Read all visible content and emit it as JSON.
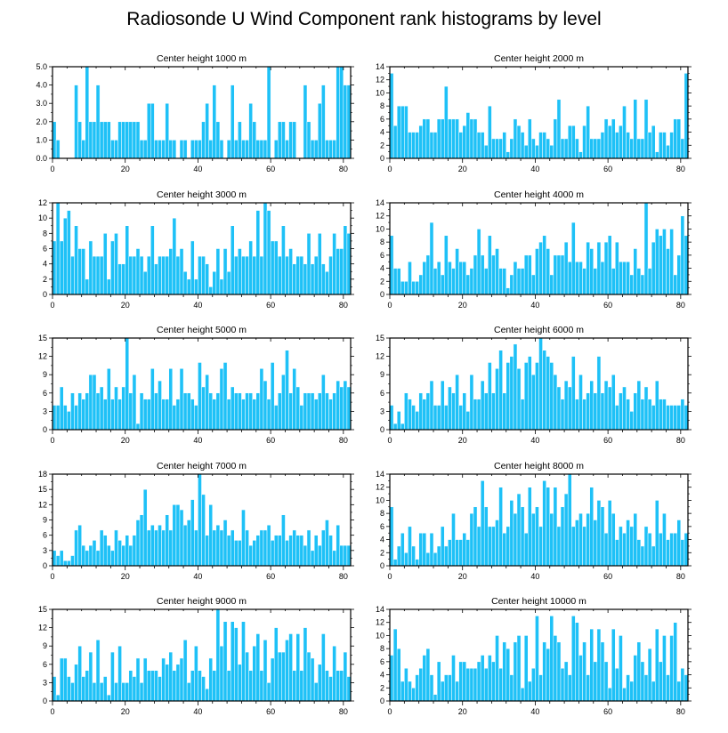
{
  "title": "Radiosonde U Wind Component rank histograms by level",
  "colors": {
    "bar": "#1ec1f7",
    "bar_edge": "#ffffff",
    "axis": "#000000",
    "frame": "#333333"
  },
  "chart_data": [
    {
      "type": "bar",
      "title": "Center height 1000 m",
      "xlim": [
        0,
        82
      ],
      "ylim": [
        0,
        5
      ],
      "xticks": [
        0,
        20,
        40,
        60,
        80
      ],
      "yticks": [
        0,
        1,
        2,
        3,
        4,
        5
      ],
      "ytick_labels": [
        "0.0",
        "1.0",
        "2.0",
        "3.0",
        "4.0",
        "5.0"
      ],
      "values": [
        2,
        1,
        0,
        0,
        0,
        0,
        4,
        2,
        1,
        5,
        2,
        2,
        4,
        2,
        2,
        2,
        1,
        1,
        2,
        2,
        2,
        2,
        2,
        2,
        1,
        1,
        3,
        3,
        1,
        1,
        1,
        3,
        1,
        1,
        0,
        1,
        1,
        0,
        1,
        1,
        1,
        2,
        3,
        1,
        4,
        2,
        1,
        0,
        1,
        4,
        1,
        2,
        1,
        1,
        3,
        2,
        1,
        1,
        1,
        5,
        0,
        1,
        2,
        2,
        1,
        2,
        2,
        0,
        0,
        4,
        2,
        1,
        1,
        3,
        4,
        1,
        1,
        1,
        5,
        5,
        4,
        4
      ]
    },
    {
      "type": "bar",
      "title": "Center height 2000 m",
      "xlim": [
        0,
        82
      ],
      "ylim": [
        0,
        14
      ],
      "xticks": [
        0,
        20,
        40,
        60,
        80
      ],
      "yticks": [
        0,
        2,
        4,
        6,
        8,
        10,
        12,
        14
      ],
      "ytick_labels": [
        "0",
        "2",
        "4",
        "6",
        "8",
        "10",
        "12",
        "14"
      ],
      "values": [
        13,
        5,
        8,
        8,
        8,
        4,
        4,
        4,
        5,
        6,
        6,
        4,
        4,
        6,
        6,
        11,
        6,
        6,
        6,
        4,
        5,
        7,
        6,
        6,
        4,
        4,
        2,
        8,
        3,
        3,
        3,
        4,
        1,
        3,
        6,
        5,
        4,
        2,
        6,
        3,
        2,
        4,
        4,
        3,
        2,
        6,
        9,
        3,
        3,
        5,
        5,
        3,
        1,
        5,
        8,
        3,
        3,
        3,
        4,
        6,
        5,
        6,
        4,
        5,
        8,
        4,
        3,
        9,
        3,
        3,
        9,
        4,
        5,
        1,
        4,
        4,
        2,
        4,
        6,
        6,
        3,
        13
      ]
    },
    {
      "type": "bar",
      "title": "Center height 3000 m",
      "xlim": [
        0,
        82
      ],
      "ylim": [
        0,
        12
      ],
      "xticks": [
        0,
        20,
        40,
        60,
        80
      ],
      "yticks": [
        0,
        2,
        4,
        6,
        8,
        10,
        12
      ],
      "ytick_labels": [
        "0",
        "2",
        "4",
        "6",
        "8",
        "10",
        "12"
      ],
      "values": [
        7,
        12,
        7,
        10,
        11,
        5,
        9,
        6,
        6,
        2,
        7,
        5,
        5,
        5,
        8,
        2,
        7,
        8,
        4,
        4,
        9,
        5,
        5,
        6,
        5,
        3,
        5,
        9,
        4,
        5,
        5,
        5,
        6,
        10,
        5,
        6,
        3,
        2,
        7,
        2,
        5,
        5,
        4,
        1,
        3,
        6,
        2,
        6,
        3,
        9,
        5,
        6,
        5,
        5,
        7,
        5,
        11,
        5,
        12,
        11,
        7,
        7,
        5,
        9,
        5,
        6,
        4,
        5,
        5,
        4,
        8,
        4,
        5,
        8,
        4,
        3,
        5,
        8,
        6,
        6,
        9,
        8
      ]
    },
    {
      "type": "bar",
      "title": "Center height 4000 m",
      "xlim": [
        0,
        82
      ],
      "ylim": [
        0,
        14
      ],
      "xticks": [
        0,
        20,
        40,
        60,
        80
      ],
      "yticks": [
        0,
        2,
        4,
        6,
        8,
        10,
        12,
        14
      ],
      "ytick_labels": [
        "0",
        "2",
        "4",
        "6",
        "8",
        "10",
        "12",
        "14"
      ],
      "values": [
        9,
        4,
        4,
        2,
        2,
        5,
        2,
        2,
        3,
        5,
        6,
        11,
        4,
        5,
        3,
        9,
        5,
        4,
        7,
        5,
        5,
        3,
        4,
        6,
        10,
        6,
        4,
        9,
        6,
        7,
        4,
        4,
        1,
        3,
        5,
        4,
        4,
        6,
        6,
        3,
        7,
        8,
        9,
        7,
        3,
        6,
        6,
        6,
        8,
        5,
        11,
        5,
        5,
        4,
        8,
        7,
        4,
        8,
        5,
        8,
        9,
        4,
        8,
        5,
        5,
        5,
        3,
        7,
        4,
        3,
        14,
        4,
        8,
        10,
        9,
        10,
        7,
        10,
        3,
        6,
        12,
        9
      ]
    },
    {
      "type": "bar",
      "title": "Center height 5000 m",
      "xlim": [
        0,
        82
      ],
      "ylim": [
        0,
        15
      ],
      "xticks": [
        0,
        20,
        40,
        60,
        80
      ],
      "yticks": [
        0,
        3,
        6,
        9,
        12,
        15
      ],
      "ytick_labels": [
        "0",
        "3",
        "6",
        "9",
        "12",
        "15"
      ],
      "values": [
        4,
        4,
        7,
        4,
        3,
        6,
        4,
        6,
        5,
        6,
        9,
        9,
        6,
        7,
        5,
        10,
        5,
        7,
        5,
        7,
        15,
        6,
        9,
        1,
        6,
        5,
        5,
        10,
        6,
        8,
        5,
        5,
        10,
        4,
        5,
        10,
        6,
        6,
        5,
        4,
        11,
        7,
        9,
        6,
        5,
        6,
        10,
        11,
        5,
        7,
        6,
        6,
        5,
        6,
        6,
        5,
        6,
        10,
        8,
        5,
        11,
        4,
        6,
        9,
        13,
        6,
        10,
        7,
        4,
        6,
        6,
        6,
        5,
        6,
        9,
        6,
        5,
        6,
        8,
        7,
        8,
        7
      ]
    },
    {
      "type": "bar",
      "title": "Center height 6000 m",
      "xlim": [
        0,
        82
      ],
      "ylim": [
        0,
        15
      ],
      "xticks": [
        0,
        20,
        40,
        60,
        80
      ],
      "yticks": [
        0,
        3,
        6,
        9,
        12,
        15
      ],
      "ytick_labels": [
        "0",
        "3",
        "6",
        "9",
        "12",
        "15"
      ],
      "values": [
        4,
        1,
        3,
        1,
        6,
        5,
        4,
        3,
        6,
        5,
        6,
        8,
        4,
        4,
        8,
        4,
        7,
        6,
        9,
        4,
        6,
        3,
        9,
        5,
        5,
        8,
        6,
        11,
        6,
        10,
        13,
        6,
        11,
        12,
        14,
        10,
        5,
        11,
        12,
        9,
        11,
        15,
        13,
        12,
        11,
        9,
        7,
        5,
        8,
        7,
        12,
        5,
        9,
        5,
        6,
        8,
        6,
        12,
        6,
        8,
        7,
        9,
        4,
        6,
        7,
        5,
        3,
        6,
        8,
        5,
        7,
        5,
        4,
        8,
        5,
        5,
        4,
        4,
        4,
        4,
        5,
        4
      ]
    },
    {
      "type": "bar",
      "title": "Center height 7000 m",
      "xlim": [
        0,
        82
      ],
      "ylim": [
        0,
        18
      ],
      "xticks": [
        0,
        20,
        40,
        60,
        80
      ],
      "yticks": [
        0,
        3,
        6,
        9,
        12,
        15,
        18
      ],
      "ytick_labels": [
        "0",
        "3",
        "6",
        "9",
        "12",
        "15",
        "18"
      ],
      "values": [
        3,
        2,
        3,
        1,
        1,
        2,
        7,
        8,
        4,
        3,
        4,
        5,
        3,
        7,
        6,
        4,
        3,
        7,
        5,
        4,
        6,
        4,
        6,
        9,
        10,
        15,
        7,
        8,
        7,
        8,
        7,
        10,
        7,
        12,
        12,
        11,
        8,
        9,
        13,
        7,
        18,
        14,
        6,
        12,
        7,
        8,
        7,
        9,
        6,
        7,
        5,
        5,
        11,
        7,
        4,
        5,
        6,
        7,
        7,
        8,
        5,
        6,
        6,
        10,
        5,
        6,
        7,
        6,
        6,
        4,
        7,
        3,
        6,
        4,
        7,
        9,
        6,
        3,
        8,
        4,
        4,
        4
      ]
    },
    {
      "type": "bar",
      "title": "Center height 8000 m",
      "xlim": [
        0,
        82
      ],
      "ylim": [
        0,
        14
      ],
      "xticks": [
        0,
        20,
        40,
        60,
        80
      ],
      "yticks": [
        0,
        2,
        4,
        6,
        8,
        10,
        12,
        14
      ],
      "ytick_labels": [
        "0",
        "2",
        "4",
        "6",
        "8",
        "10",
        "12",
        "14"
      ],
      "values": [
        9,
        1,
        3,
        5,
        2,
        6,
        3,
        1,
        5,
        5,
        2,
        5,
        2,
        3,
        6,
        3,
        4,
        8,
        4,
        4,
        5,
        4,
        8,
        9,
        6,
        13,
        9,
        6,
        6,
        7,
        12,
        5,
        6,
        10,
        8,
        11,
        9,
        5,
        12,
        8,
        9,
        6,
        13,
        12,
        8,
        12,
        6,
        9,
        11,
        14,
        6,
        7,
        8,
        6,
        8,
        12,
        7,
        10,
        9,
        5,
        10,
        8,
        4,
        6,
        5,
        7,
        6,
        8,
        4,
        3,
        6,
        5,
        3,
        10,
        5,
        8,
        4,
        5,
        5,
        7,
        4,
        5
      ]
    },
    {
      "type": "bar",
      "title": "Center height 9000 m",
      "xlim": [
        0,
        82
      ],
      "ylim": [
        0,
        15
      ],
      "xticks": [
        0,
        20,
        40,
        60,
        80
      ],
      "yticks": [
        0,
        3,
        6,
        9,
        12,
        15
      ],
      "ytick_labels": [
        "0",
        "3",
        "6",
        "9",
        "12",
        "15"
      ],
      "values": [
        4,
        1,
        7,
        7,
        4,
        3,
        6,
        9,
        4,
        5,
        8,
        3,
        10,
        3,
        4,
        1,
        8,
        3,
        9,
        3,
        3,
        5,
        4,
        7,
        3,
        7,
        5,
        5,
        5,
        4,
        7,
        6,
        8,
        5,
        6,
        7,
        10,
        3,
        5,
        9,
        5,
        4,
        2,
        7,
        5,
        15,
        9,
        13,
        5,
        13,
        12,
        6,
        13,
        8,
        5,
        9,
        11,
        5,
        10,
        3,
        7,
        12,
        8,
        8,
        10,
        11,
        5,
        11,
        5,
        12,
        8,
        7,
        3,
        6,
        11,
        5,
        4,
        9,
        5,
        5,
        8,
        4
      ]
    },
    {
      "type": "bar",
      "title": "Center height 10000 m",
      "xlim": [
        0,
        82
      ],
      "ylim": [
        0,
        14
      ],
      "xticks": [
        0,
        20,
        40,
        60,
        80
      ],
      "yticks": [
        0,
        2,
        4,
        6,
        8,
        10,
        12,
        14
      ],
      "ytick_labels": [
        "0",
        "2",
        "4",
        "6",
        "8",
        "10",
        "12",
        "14"
      ],
      "values": [
        7,
        11,
        8,
        3,
        5,
        3,
        2,
        4,
        5,
        7,
        8,
        4,
        1,
        6,
        3,
        4,
        4,
        7,
        3,
        6,
        6,
        5,
        5,
        5,
        6,
        7,
        5,
        7,
        6,
        10,
        5,
        9,
        8,
        4,
        9,
        10,
        2,
        10,
        3,
        5,
        13,
        4,
        9,
        8,
        13,
        10,
        9,
        5,
        6,
        4,
        13,
        12,
        7,
        9,
        4,
        11,
        6,
        11,
        9,
        6,
        2,
        11,
        5,
        10,
        2,
        4,
        3,
        7,
        9,
        6,
        4,
        8,
        3,
        11,
        6,
        10,
        4,
        10,
        12,
        3,
        5,
        4
      ]
    }
  ]
}
